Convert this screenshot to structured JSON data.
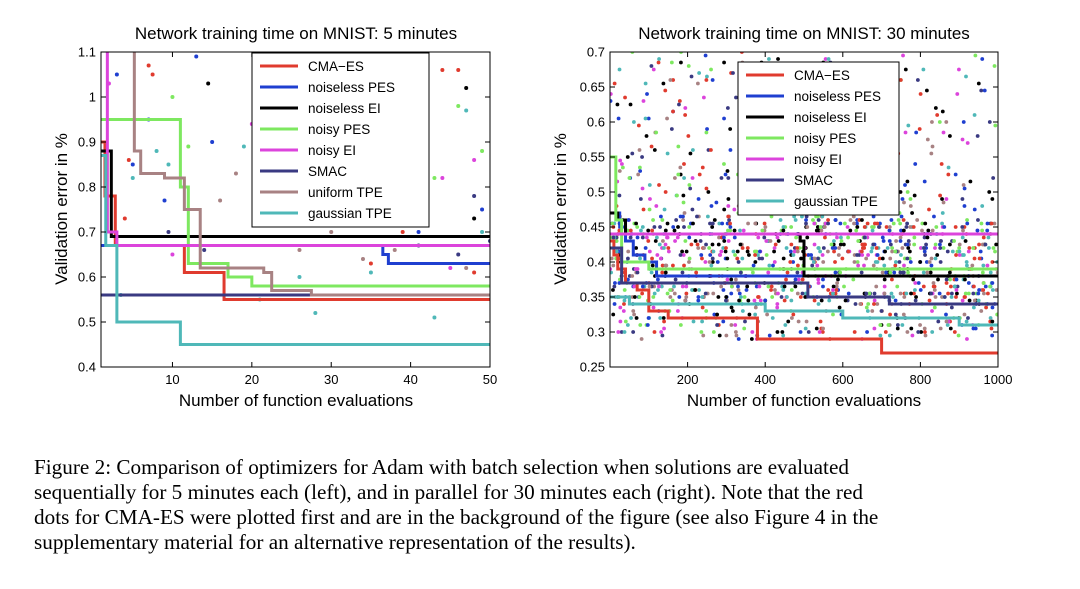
{
  "chart_data": [
    {
      "type": "line",
      "title": "Network training time on MNIST: 5 minutes",
      "xlabel": "Number of function evaluations",
      "ylabel": "Validation error in %",
      "xlim": [
        1,
        50
      ],
      "ylim": [
        0.4,
        1.1
      ],
      "xticks": [
        10,
        20,
        30,
        40,
        50
      ],
      "yticks": [
        0.4,
        0.5,
        0.6,
        0.7,
        0.8,
        0.9,
        1,
        1.1
      ],
      "xtick_labels": [
        "10",
        "20",
        "30",
        "40",
        "50"
      ],
      "ytick_labels": [
        "0.4",
        "0.5",
        "0.6",
        "0.7",
        "0.8",
        "0.9",
        "1",
        "1.1"
      ],
      "grid": false,
      "legend_position": "top-right",
      "series": [
        {
          "name": "CMA−ES",
          "color": "#e03b2e",
          "x": [
            1,
            1.5,
            1.5,
            2.8,
            2.8,
            11.5,
            11.5,
            16.5,
            16.5,
            50
          ],
          "y": [
            0.9,
            0.9,
            0.78,
            0.78,
            0.67,
            0.67,
            0.61,
            0.61,
            0.55,
            0.55
          ]
        },
        {
          "name": "noiseless PES",
          "color": "#1f3fd0",
          "x": [
            1,
            36.5,
            36.5,
            37.2,
            37.2,
            50
          ],
          "y": [
            0.67,
            0.67,
            0.65,
            0.65,
            0.63,
            0.63
          ]
        },
        {
          "name": "noiseless EI",
          "color": "#000000",
          "x": [
            1,
            2.3,
            2.3,
            50
          ],
          "y": [
            0.88,
            0.88,
            0.69,
            0.69
          ]
        },
        {
          "name": "noisy PES",
          "color": "#7ee860",
          "x": [
            1,
            11,
            11,
            12,
            12,
            17,
            17,
            20,
            20,
            50
          ],
          "y": [
            0.95,
            0.95,
            0.8,
            0.8,
            0.63,
            0.63,
            0.6,
            0.6,
            0.58,
            0.58
          ]
        },
        {
          "name": "noisy EI",
          "color": "#dc44dc",
          "x": [
            1.8,
            1.8,
            3,
            3,
            50
          ],
          "y": [
            1.1,
            0.7,
            0.7,
            0.67,
            0.67
          ]
        },
        {
          "name": "SMAC",
          "color": "#3a3a82",
          "x": [
            1,
            50
          ],
          "y": [
            0.56,
            0.56
          ]
        },
        {
          "name": "uniform TPE",
          "color": "#a88283",
          "x": [
            5.2,
            5.2,
            6,
            6,
            9,
            9,
            11.5,
            11.5,
            13.5,
            13.5,
            17.5,
            17.5,
            21.5,
            21.5,
            22.5,
            22.5,
            27.5,
            27.5,
            50
          ],
          "y": [
            1.1,
            0.88,
            0.88,
            0.83,
            0.83,
            0.82,
            0.82,
            0.75,
            0.75,
            0.62,
            0.62,
            0.62,
            0.62,
            0.61,
            0.61,
            0.57,
            0.57,
            0.56,
            0.56
          ]
        },
        {
          "name": "gaussian TPE",
          "color": "#4fb8b8",
          "x": [
            1,
            1.6,
            1.6,
            3,
            3,
            8,
            8,
            11,
            11,
            50
          ],
          "y": [
            0.87,
            0.87,
            0.67,
            0.67,
            0.5,
            0.5,
            0.5,
            0.5,
            0.45,
            0.45
          ]
        }
      ],
      "scatter": [
        {
          "series": "CMA−ES",
          "x": [
            4,
            4.5,
            7,
            7.5,
            33,
            35,
            38,
            39,
            44,
            46,
            48
          ],
          "y": [
            0.73,
            0.86,
            1.07,
            1.05,
            0.89,
            0.63,
            0.8,
            0.7,
            1.06,
            1.06,
            0.61
          ]
        },
        {
          "series": "noiseless PES",
          "x": [
            3,
            5,
            7,
            9,
            13,
            15,
            22,
            25,
            29,
            36,
            38,
            41,
            49
          ],
          "y": [
            1.05,
            0.85,
            0.95,
            0.77,
            1.09,
            0.9,
            0.95,
            0.97,
            0.85,
            0.77,
            0.88,
            0.7,
            0.75
          ]
        },
        {
          "name": "noiseless EI",
          "series": "noiseless EI",
          "x": [
            14.5,
            47,
            48
          ],
          "y": [
            1.03,
            1.02,
            0.73
          ]
        },
        {
          "series": "noisy PES",
          "x": [
            10,
            12,
            24,
            34,
            43,
            46,
            49
          ],
          "y": [
            1.0,
            0.89,
            0.93,
            0.72,
            0.82,
            0.98,
            0.88
          ]
        },
        {
          "series": "noisy EI",
          "x": [
            2,
            10,
            20,
            33,
            40,
            44,
            45,
            48
          ],
          "y": [
            1.03,
            0.65,
            0.94,
            0.92,
            0.91,
            0.82,
            0.62,
            0.86
          ]
        },
        {
          "series": "SMAC",
          "x": [
            9.5,
            14,
            28,
            35,
            41,
            46,
            48,
            50
          ],
          "y": [
            0.7,
            0.66,
            0.81,
            0.78,
            0.67,
            0.65,
            0.78,
            0.68
          ]
        },
        {
          "series": "uniform TPE",
          "x": [
            16,
            18,
            23,
            26,
            30,
            34,
            38,
            47
          ],
          "y": [
            0.77,
            0.83,
            0.78,
            0.66,
            0.7,
            0.64,
            0.66,
            0.62
          ]
        },
        {
          "series": "gaussian TPE",
          "x": [
            3.5,
            5,
            8,
            9.5,
            19,
            21,
            26,
            28,
            33,
            35,
            43,
            47,
            49
          ],
          "y": [
            0.56,
            0.82,
            0.88,
            0.85,
            0.89,
            0.55,
            0.6,
            0.52,
            0.75,
            0.61,
            0.51,
            0.97,
            0.7
          ]
        }
      ]
    },
    {
      "type": "line",
      "title": "Network training time on MNIST: 30 minutes",
      "xlabel": "Number of function evaluations",
      "ylabel": "Validation error in %",
      "xlim": [
        0,
        1000
      ],
      "ylim": [
        0.25,
        0.7
      ],
      "xticks": [
        200,
        400,
        600,
        800,
        1000
      ],
      "yticks": [
        0.25,
        0.3,
        0.35,
        0.4,
        0.45,
        0.5,
        0.55,
        0.6,
        0.65,
        0.7
      ],
      "xtick_labels": [
        "200",
        "400",
        "600",
        "800",
        "1000"
      ],
      "ytick_labels": [
        "0.25",
        "0.3",
        "0.35",
        "0.4",
        "0.45",
        "0.5",
        "0.55",
        "0.6",
        "0.65",
        "0.7"
      ],
      "grid": false,
      "legend_position": "top-center",
      "series": [
        {
          "name": "CMA−ES",
          "color": "#e03b2e",
          "x": [
            0,
            10,
            10,
            20,
            20,
            40,
            40,
            70,
            70,
            100,
            100,
            150,
            150,
            380,
            380,
            700,
            700,
            1000
          ],
          "y": [
            0.43,
            0.43,
            0.41,
            0.41,
            0.39,
            0.39,
            0.37,
            0.37,
            0.36,
            0.36,
            0.33,
            0.33,
            0.32,
            0.32,
            0.29,
            0.29,
            0.27,
            0.27
          ]
        },
        {
          "name": "noiseless PES",
          "color": "#1f3fd0",
          "x": [
            0,
            25,
            25,
            40,
            40,
            60,
            60,
            90,
            90,
            120,
            120,
            1000
          ],
          "y": [
            0.47,
            0.47,
            0.45,
            0.45,
            0.43,
            0.43,
            0.41,
            0.41,
            0.4,
            0.4,
            0.38,
            0.38
          ]
        },
        {
          "name": "noiseless EI",
          "color": "#000000",
          "x": [
            0,
            20,
            20,
            40,
            40,
            490,
            490,
            500,
            500,
            1000
          ],
          "y": [
            0.47,
            0.47,
            0.46,
            0.46,
            0.44,
            0.44,
            0.43,
            0.43,
            0.38,
            0.38
          ]
        },
        {
          "name": "noisy PES",
          "color": "#7ee860",
          "x": [
            0,
            15,
            15,
            30,
            30,
            100,
            100,
            1000
          ],
          "y": [
            0.55,
            0.55,
            0.46,
            0.46,
            0.4,
            0.4,
            0.39,
            0.39
          ]
        },
        {
          "name": "noisy EI",
          "color": "#dc44dc",
          "x": [
            0,
            1000
          ],
          "y": [
            0.44,
            0.44
          ]
        },
        {
          "name": "SMAC",
          "color": "#3a3a82",
          "x": [
            0,
            30,
            30,
            510,
            510,
            720,
            720,
            1000
          ],
          "y": [
            0.42,
            0.42,
            0.37,
            0.37,
            0.35,
            0.35,
            0.34,
            0.34
          ]
        },
        {
          "name": "gaussian TPE",
          "color": "#4fb8b8",
          "x": [
            0,
            50,
            50,
            400,
            400,
            600,
            600,
            900,
            900,
            1000
          ],
          "y": [
            0.35,
            0.35,
            0.34,
            0.34,
            0.33,
            0.33,
            0.32,
            0.32,
            0.31,
            0.31
          ]
        }
      ]
    }
  ],
  "caption": {
    "line1": "Figure 2:   Comparison of optimizers for Adam with batch selection when solutions are evaluated",
    "line2": "sequentially for 5 minutes each (left), and in parallel for 30 minutes each (right). Note that the red",
    "line3": "dots for CMA-ES were plotted first and are in the background of the figure (see also Figure 4 in the",
    "line4": "supplementary material for an alternative representation of the results)."
  }
}
